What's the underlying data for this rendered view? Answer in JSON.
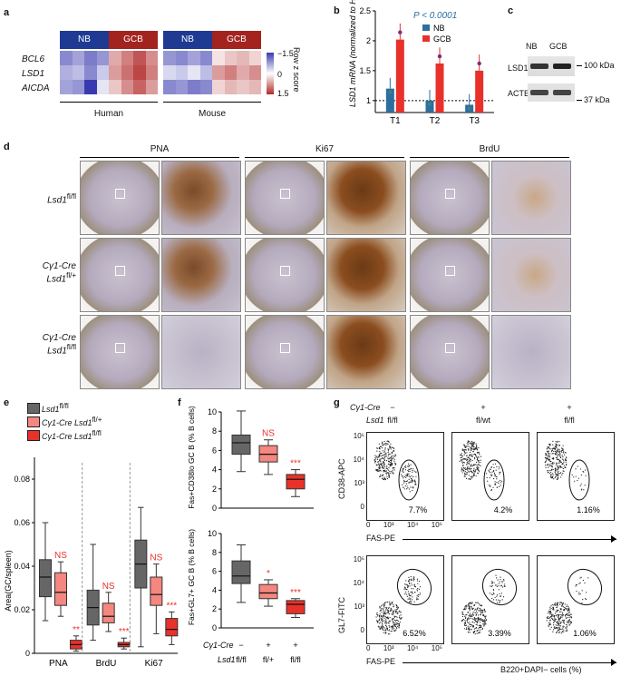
{
  "panels": {
    "a": "a",
    "b": "b",
    "c": "c",
    "d": "d",
    "e": "e",
    "f": "f",
    "g": "g"
  },
  "panel_a": {
    "group_nb": "NB",
    "group_gcb": "GCB",
    "genes": [
      "BCL6",
      "LSD1",
      "AICDA"
    ],
    "species": [
      "Human",
      "Mouse"
    ],
    "colorbar_title": "Row z score",
    "colorbar_ticks": [
      "−1.5",
      "0",
      "1.5"
    ],
    "colors": {
      "nb_header": "#1f3a93",
      "gcb_header": "#a3231f",
      "low": "#3a3ab0",
      "high": "#b22a2a"
    },
    "human_matrix": [
      [
        -0.9,
        -0.7,
        -1.0,
        -0.8,
        0.6,
        0.9,
        1.2,
        0.8
      ],
      [
        -0.6,
        -0.5,
        -0.9,
        -0.4,
        0.7,
        1.0,
        1.3,
        0.9
      ],
      [
        -0.7,
        -0.8,
        -1.5,
        -0.2,
        0.4,
        0.8,
        1.1,
        0.7
      ]
    ],
    "mouse_matrix": [
      [
        -0.8,
        -0.9,
        -0.7,
        -0.9,
        0.2,
        0.4,
        0.5,
        0.3
      ],
      [
        -0.3,
        -0.4,
        -0.2,
        -0.5,
        0.7,
        0.9,
        0.6,
        0.8
      ],
      [
        -0.9,
        -0.8,
        -1.0,
        -0.9,
        0.3,
        0.5,
        0.4,
        0.5
      ]
    ]
  },
  "panel_b": {
    "pvalue": "P < 0.0001",
    "ylabel": "LSD1 mRNA (normalized to HPRT)",
    "legend": [
      "NB",
      "GCB"
    ],
    "colors": {
      "nb": "#2c6e9f",
      "gcb": "#e8312a"
    },
    "chart_data": {
      "type": "bar",
      "categories": [
        "T1",
        "T2",
        "T3"
      ],
      "series": [
        {
          "name": "NB",
          "values": [
            1.2,
            1.0,
            0.93
          ]
        },
        {
          "name": "GCB",
          "values": [
            2.02,
            1.62,
            1.5
          ]
        }
      ],
      "ylim": [
        0.8,
        2.5
      ],
      "yticks": [
        "1",
        "1.5",
        "2",
        "2.5"
      ]
    }
  },
  "panel_c": {
    "nb": "NB",
    "gcb": "GCB",
    "bands": [
      "LSD1",
      "ACTB"
    ],
    "sizes": [
      "100 kDa",
      "37 kDa"
    ]
  },
  "panel_d": {
    "cols": [
      "PNA",
      "Ki67",
      "BrdU"
    ],
    "rows": [
      {
        "l1": "Lsd1",
        "sup1": "fl/fl",
        "l2": "",
        "sup2": ""
      },
      {
        "l1": "Cγ1-Cre",
        "sup1": "",
        "l2": "Lsd1",
        "sup2": "fl/+"
      },
      {
        "l1": "Cγ1-Cre",
        "sup1": "",
        "l2": "Lsd1",
        "sup2": "fl/fl"
      }
    ]
  },
  "panel_e": {
    "legend": [
      {
        "label": "Lsd1",
        "sup": "fl/fl",
        "color": "#666666"
      },
      {
        "label": "Cγ1-Cre Lsd1",
        "sup": "fl/+",
        "color": "#f4877f"
      },
      {
        "label": "Cγ1-Cre Lsd1",
        "sup": "fl/fl",
        "color": "#e8312a"
      }
    ],
    "ylabel": "Area(GC/spleen)",
    "chart_data": {
      "type": "box",
      "categories": [
        "PNA",
        "BrdU",
        "Ki67"
      ],
      "ylim": [
        0,
        0.09
      ],
      "yticks": [
        "0",
        "0.02",
        "0.04",
        "0.06",
        "0.08"
      ],
      "groups": [
        {
          "name": "PNA",
          "boxes": [
            {
              "min": 0.015,
              "q1": 0.026,
              "median": 0.035,
              "q3": 0.043,
              "max": 0.06
            },
            {
              "min": 0.017,
              "q1": 0.022,
              "median": 0.028,
              "q3": 0.037,
              "max": 0.042
            },
            {
              "min": 0.001,
              "q1": 0.002,
              "median": 0.004,
              "q3": 0.006,
              "max": 0.008
            }
          ]
        },
        {
          "name": "BrdU",
          "boxes": [
            {
              "min": 0.006,
              "q1": 0.013,
              "median": 0.021,
              "q3": 0.029,
              "max": 0.05
            },
            {
              "min": 0.01,
              "q1": 0.014,
              "median": 0.017,
              "q3": 0.023,
              "max": 0.028
            },
            {
              "min": 0.002,
              "q1": 0.003,
              "median": 0.004,
              "q3": 0.005,
              "max": 0.007
            }
          ]
        },
        {
          "name": "Ki67",
          "boxes": [
            {
              "min": 0.003,
              "q1": 0.03,
              "median": 0.041,
              "q3": 0.052,
              "max": 0.067
            },
            {
              "min": 0.009,
              "q1": 0.022,
              "median": 0.027,
              "q3": 0.035,
              "max": 0.041
            },
            {
              "min": 0.004,
              "q1": 0.008,
              "median": 0.011,
              "q3": 0.016,
              "max": 0.019
            }
          ]
        }
      ],
      "annotations": [
        [
          "NS",
          "**"
        ],
        [
          "NS",
          "***"
        ],
        [
          "NS",
          "***"
        ]
      ]
    }
  },
  "panel_f": {
    "top": {
      "ylabel": "Fas+CD38lo GC B (% B cells)",
      "ylim": [
        0,
        10
      ],
      "yticks": [
        "0",
        "2",
        "4",
        "6",
        "8",
        "10"
      ],
      "boxes": [
        {
          "min": 3.8,
          "q1": 5.6,
          "median": 6.8,
          "q3": 7.6,
          "max": 10.1
        },
        {
          "min": 3.5,
          "q1": 4.8,
          "median": 5.6,
          "q3": 6.5,
          "max": 7.1
        },
        {
          "min": 1.2,
          "q1": 2.0,
          "median": 3.0,
          "q3": 3.5,
          "max": 4.0
        }
      ],
      "annotations": [
        "",
        "NS",
        "***"
      ]
    },
    "bottom": {
      "ylabel": "Fas+GL7+ GC B (% B cells)",
      "ylim": [
        0,
        10
      ],
      "yticks": [
        "0",
        "2",
        "4",
        "6",
        "8",
        "10"
      ],
      "boxes": [
        {
          "min": 2.7,
          "q1": 4.7,
          "median": 5.5,
          "q3": 7.1,
          "max": 8.8
        },
        {
          "min": 2.3,
          "q1": 3.1,
          "median": 3.7,
          "q3": 4.6,
          "max": 5.1
        },
        {
          "min": 1.1,
          "q1": 1.5,
          "median": 2.5,
          "q3": 2.9,
          "max": 3.1
        }
      ],
      "annotations": [
        "",
        "*",
        "***"
      ]
    },
    "xrow1_label": "Cγ1-Cre",
    "xrow1": [
      "−",
      "+",
      "+"
    ],
    "xrow2_label": "Lsd1",
    "xrow2": [
      "fl/fl",
      "fl/+",
      "fl/fl"
    ]
  },
  "panel_g": {
    "cre_label": "Cγ1-Cre",
    "lsd1_label": "Lsd1",
    "cre": [
      "−",
      "+",
      "+"
    ],
    "lsd1": [
      "fl/fl",
      "fl/wt",
      "fl/fl"
    ],
    "top_ylabel": "CD38-APC",
    "bottom_ylabel": "GL7-FITC",
    "xlabel": "FAS-PE",
    "footer": "B220+DAPI− cells (%)",
    "ticks": [
      "10⁵",
      "10⁴",
      "10³",
      "0"
    ],
    "xticks": [
      "0",
      "10³",
      "10⁴",
      "10⁵"
    ],
    "top_pct": [
      "7.7%",
      "4.2%",
      "1.16%"
    ],
    "bottom_pct": [
      "6.52%",
      "3.39%",
      "1.06%"
    ]
  }
}
